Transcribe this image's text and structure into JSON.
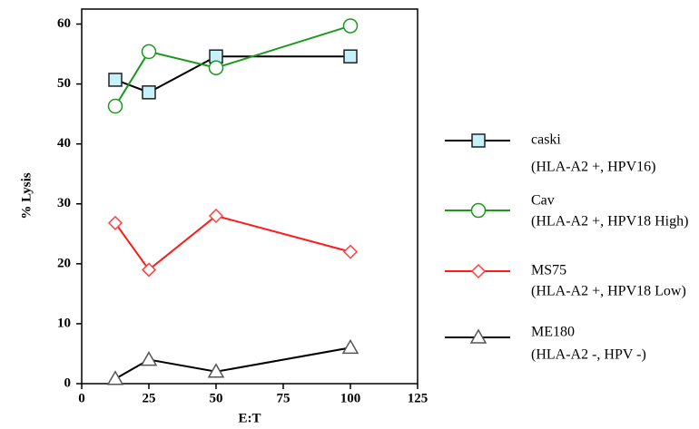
{
  "chart_data": {
    "type": "line",
    "x_label": "E:T",
    "y_label": "% Lysis",
    "x": [
      12.5,
      25,
      50,
      100
    ],
    "series": [
      {
        "name": "caski",
        "description": "(HLA-A2 +, HPV16)",
        "marker": "square",
        "color": "#000000",
        "marker_fill": "#c4f2f8",
        "marker_edge": "#202020",
        "values": [
          50.7,
          48.6,
          54.6,
          54.6
        ]
      },
      {
        "name": "Cav",
        "description": "(HLA-A2 +, HPV18 High)",
        "marker": "circle",
        "color": "#1a9a1a",
        "marker_fill": "#ffffff",
        "marker_edge": "#1a9a1a",
        "values": [
          46.3,
          55.4,
          52.7,
          59.7
        ]
      },
      {
        "name": "MS75",
        "description": "(HLA-A2 +, HPV18 Low)",
        "marker": "diamond",
        "color": "#ff1a1a",
        "marker_fill": "#ffffff",
        "marker_edge": "#ff4040",
        "values": [
          26.8,
          19,
          28,
          22
        ]
      },
      {
        "name": "ME180",
        "description": "(HLA-A2 -, HPV -)",
        "marker": "triangle",
        "color": "#000000",
        "marker_fill": "#ffffff",
        "marker_edge": "#555555",
        "values": [
          0.8,
          4,
          2,
          6
        ]
      }
    ],
    "xlim": [
      0,
      125
    ],
    "xticks": [
      0,
      25,
      50,
      75,
      100,
      125
    ],
    "ylim": [
      0,
      62.5
    ],
    "yticks": [
      0,
      10,
      20,
      30,
      40,
      50,
      60
    ],
    "grid": false,
    "legend": "right"
  }
}
